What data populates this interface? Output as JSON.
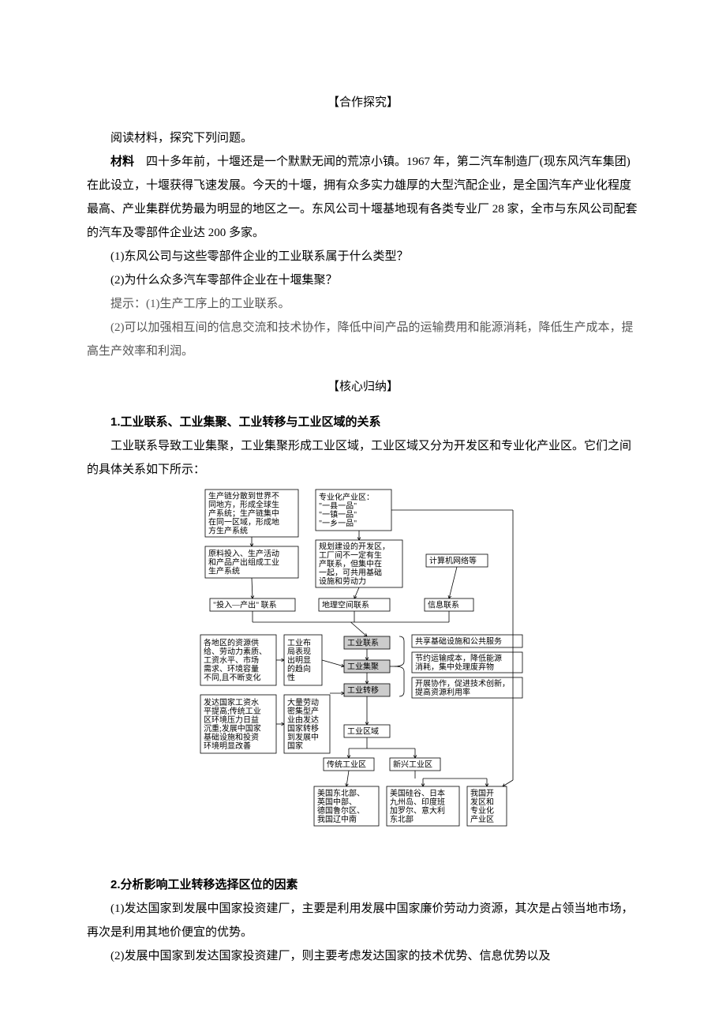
{
  "section1_title": "【合作探究】",
  "intro": "阅读材料，探究下列问题。",
  "material_label": "材料",
  "material_body": "　四十多年前，十堰还是一个默默无闻的荒凉小镇。1967 年，第二汽车制造厂(现东风汽车集团)在此设立，十堰获得飞速发展。今天的十堰，拥有众多实力雄厚的大型汽配企业，是全国汽车产业化程度最高、产业集群优势最为明显的地区之一。东风公司十堰基地现有各类专业厂 28 家，全市与东风公司配套的汽车及零部件企业达 200 多家。",
  "q1": "(1)东风公司与这些零部件企业的工业联系属于什么类型？",
  "q2": "(2)为什么众多汽车零部件企业在十堰集聚？",
  "hint_label": "提示：",
  "hint1": "(1)生产工序上的工业联系。",
  "hint2": "(2)可以加强相互间的信息交流和技术协作，降低中间产品的运输费用和能源消耗，降低生产成本，提高生产效率和利润。",
  "section2_title": "【核心归纳】",
  "h1": "1.工业联系、工业集聚、工业转移与工业区域的关系",
  "h1_body": "工业联系导致工业集聚，工业集聚形成工业区域，工业区域又分为开发区和专业化产业区。它们之间的具体关系如下所示：",
  "h2": "2.分析影响工业转移选择区位的因素",
  "h2_p1": "(1)发达国家到发展中国家投资建厂，主要是利用发展中国家廉价劳动力资源，其次是占领当地市场，再次是利用其地价便宜的优势。",
  "h2_p2": "(2)发展中国家到发达国家投资建厂，则主要考虑发达国家的技术优势、信息优势以及",
  "diagram": {
    "type": "flowchart",
    "colors": {
      "box_fill": "#ffffff",
      "gray_fill": "#cccccc",
      "stroke": "#000000",
      "text": "#000000"
    },
    "fontsize": 10,
    "top_row": {
      "b1": [
        "生产链分散到世界不",
        "同地方，形成全球生",
        "产系统；生产链集中",
        "在同一区域，形成地",
        "方生产系统"
      ],
      "b2": [
        "专业化产业区：",
        "\"一县一品\"",
        "\"一镇一品\"",
        "\"一乡一品\""
      ]
    },
    "row2": {
      "b1": [
        "原料投入、生产活动",
        "和产品产出组成工业",
        "生产系统"
      ],
      "b2": [
        "规划建设的开发区，",
        "工厂间不一定有生",
        "产联系，但集中在",
        "一起，可共用基础",
        "设施和劳动力"
      ],
      "b3": [
        "计算机网络等"
      ]
    },
    "row3": {
      "b1": "\"投入—产出\" 联系",
      "b2": "地理空间联系",
      "b3": "信息联系"
    },
    "left_col": {
      "b1": [
        "各地区的资源供",
        "给、劳动力素质、",
        "工资水平、市场",
        "需求、环境容量",
        "不同,且不断变化"
      ],
      "b2": [
        "发达国家工资水",
        "平提高;传统工业",
        "区环境压力日益",
        "沉重;发展中国家",
        "基础设施和投资",
        "环境明显改善"
      ]
    },
    "mid_small": {
      "b1": [
        "工业布",
        "局表现",
        "出明显",
        "的趋向",
        "性"
      ],
      "b2": [
        "大量劳动",
        "密集型产",
        "业由发达",
        "国家转移",
        "到发展中",
        "国家"
      ]
    },
    "center_gray": {
      "g1": "工业联系",
      "g2": "工业集聚",
      "g3": "工业转移",
      "g4": "工业区域"
    },
    "right_notes": {
      "n1": "共享基础设施和公共服务",
      "n2": [
        "节约运输成本，降低能源",
        "消耗，集中处理废弃物"
      ],
      "n3": [
        "开展协作，促进技术创新，",
        "提高资源利用率"
      ]
    },
    "bottom_split": {
      "b1": "传统工业区",
      "b2": "新兴工业区"
    },
    "bottom_row": {
      "b1": [
        "美国东北部、",
        "英国中部、",
        "德国鲁尔区、",
        "我国辽中南"
      ],
      "b2": [
        "美国硅谷、日本",
        "九州岛、印度班",
        "加罗尔、意大利",
        "东北部"
      ],
      "b3": [
        "我国开",
        "发区和",
        "专业化",
        "产业区"
      ]
    }
  }
}
